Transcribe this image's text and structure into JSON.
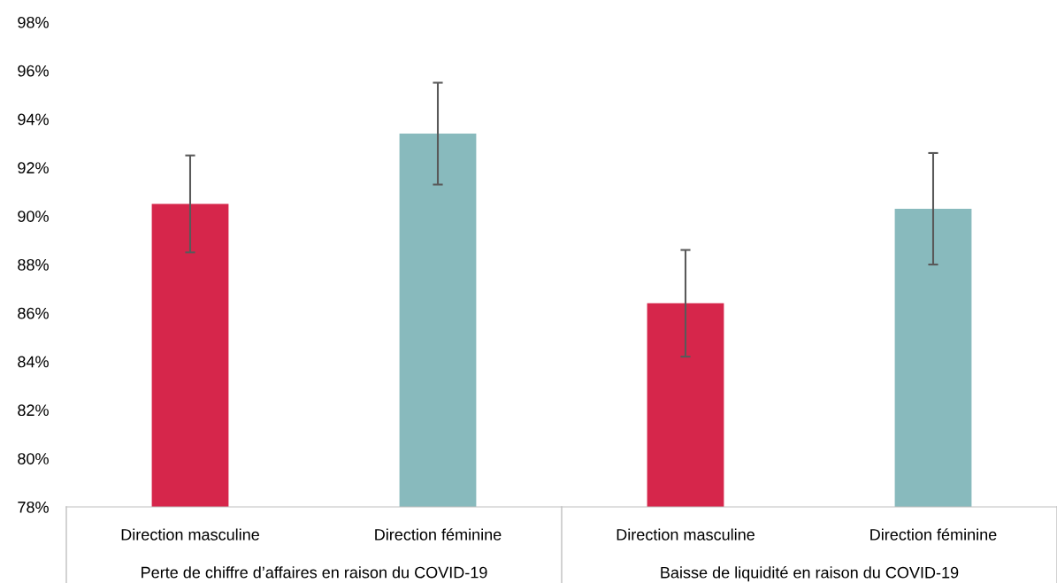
{
  "chart_data": {
    "type": "bar",
    "categories": [
      "Direction masculine",
      "Direction féminine",
      "Direction masculine",
      "Direction féminine"
    ],
    "values": [
      90.5,
      93.4,
      86.4,
      90.3
    ],
    "colors": [
      "#d6264b",
      "#88babd",
      "#d6264b",
      "#88babd"
    ],
    "errors": [
      2.0,
      2.1,
      2.2,
      2.3
    ],
    "ylim": [
      78,
      98
    ],
    "yticks": [
      {
        "value": 78,
        "label": "78%"
      },
      {
        "value": 80,
        "label": "80%"
      },
      {
        "value": 82,
        "label": "82%"
      },
      {
        "value": 84,
        "label": "84%"
      },
      {
        "value": 86,
        "label": "86%"
      },
      {
        "value": 88,
        "label": "88%"
      },
      {
        "value": 90,
        "label": "90%"
      },
      {
        "value": 92,
        "label": "92%"
      },
      {
        "value": 94,
        "label": "94%"
      },
      {
        "value": 96,
        "label": "96%"
      },
      {
        "value": 98,
        "label": "98%"
      }
    ],
    "annotations": [
      "Perte de chiffre d’affaires en raison du COVID-19",
      "Baisse de liquidité en raison du COVID-19"
    ],
    "grid": false
  }
}
